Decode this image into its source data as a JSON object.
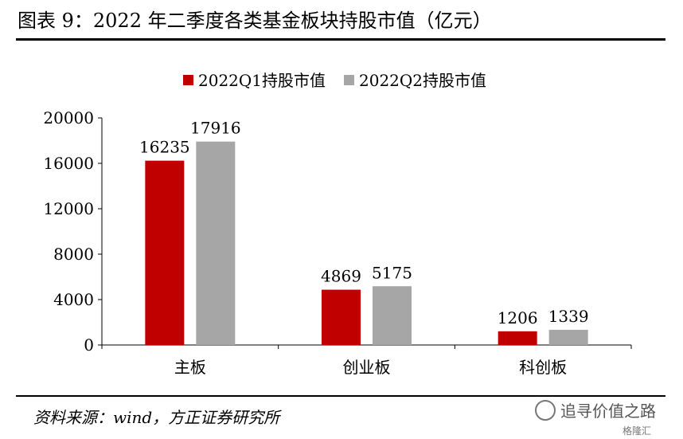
{
  "title": "图表 9：2022 年二季度各类基金板块持股市值（亿元）",
  "source": "资料来源：wind，方正证券研究所",
  "watermark": "追寻价值之路",
  "brand": "格隆汇",
  "chart_data": {
    "type": "bar",
    "categories": [
      "主板",
      "创业板",
      "科创板"
    ],
    "series": [
      {
        "name": "2022Q1持股市值",
        "values": [
          16235,
          4869,
          1206
        ],
        "color": "#C00000"
      },
      {
        "name": "2022Q2持股市值",
        "values": [
          17916,
          5175,
          1339
        ],
        "color": "#A6A6A6"
      }
    ],
    "ylim": [
      0,
      20000
    ],
    "yticks": [
      0,
      4000,
      8000,
      12000,
      16000,
      20000
    ],
    "legend": "top",
    "grid": false,
    "data_labels": true
  }
}
